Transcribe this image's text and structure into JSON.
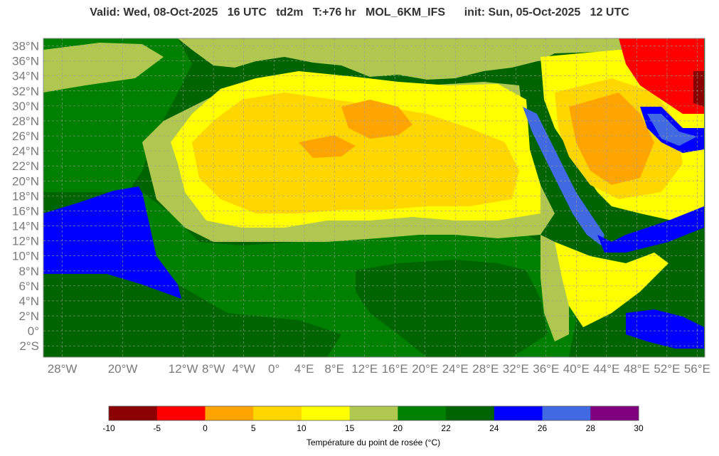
{
  "header": {
    "title": "Valid: Wed, 08-Oct-2025   16 UTC   td2m   T:+76 hr   MOL_6KM_IFS      init: Sun, 05-Oct-2025   12 UTC"
  },
  "map": {
    "lat_range": [
      -3.5,
      39
    ],
    "lon_range": [
      -30.5,
      57
    ],
    "lat_ticks": [
      "38°N",
      "36°N",
      "34°N",
      "32°N",
      "30°N",
      "28°N",
      "26°N",
      "24°N",
      "22°N",
      "20°N",
      "18°N",
      "16°N",
      "14°N",
      "12°N",
      "10°N",
      "8°N",
      "6°N",
      "4°N",
      "2°N",
      "0°",
      "2°S"
    ],
    "lat_values": [
      38,
      36,
      34,
      32,
      30,
      28,
      26,
      24,
      22,
      20,
      18,
      16,
      14,
      12,
      10,
      8,
      6,
      4,
      2,
      0,
      -2
    ],
    "lon_ticks": [
      "28°W",
      "20°W",
      "12°W",
      "8°W",
      "4°W",
      "0°",
      "4°E",
      "8°E",
      "12°E",
      "16°E",
      "20°E",
      "24°E",
      "28°E",
      "32°E",
      "36°E",
      "40°E",
      "44°E",
      "48°E",
      "52°E",
      "56°E"
    ],
    "lon_values": [
      -28,
      -20,
      -12,
      -8,
      -4,
      0,
      4,
      8,
      12,
      16,
      20,
      24,
      28,
      32,
      36,
      40,
      44,
      48,
      52,
      56
    ],
    "gridlines": true
  },
  "colorbar": {
    "colors": [
      "#8b0000",
      "#ff0000",
      "#ffa500",
      "#ffd700",
      "#ffff00",
      "#b0c850",
      "#008000",
      "#006400",
      "#0000ff",
      "#4169e1",
      "#800080"
    ],
    "labels": [
      "-10",
      "-5",
      "0",
      "5",
      "10",
      "15",
      "20",
      "22",
      "24",
      "26",
      "28",
      "30"
    ],
    "title": "Température du point de rosée (°C)"
  }
}
